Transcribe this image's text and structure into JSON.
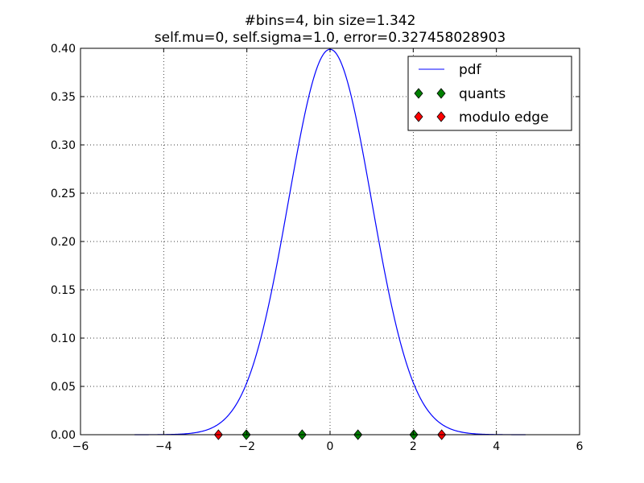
{
  "chart_data": {
    "type": "line",
    "title_lines": [
      "#bins=4, bin size=1.342",
      "self.mu=0, self.sigma=1.0, error=0.327458028903"
    ],
    "xlabel": "",
    "ylabel": "",
    "xlim": [
      -6,
      6
    ],
    "ylim": [
      0,
      0.4
    ],
    "x_ticks": [
      -6,
      -4,
      -2,
      0,
      2,
      4,
      6
    ],
    "x_tick_labels": [
      "−6",
      "−4",
      "−2",
      "0",
      "2",
      "4",
      "6"
    ],
    "y_ticks": [
      0,
      0.05,
      0.1,
      0.15,
      0.2,
      0.25,
      0.3,
      0.35,
      0.4
    ],
    "y_tick_labels": [
      "0.00",
      "0.05",
      "0.10",
      "0.15",
      "0.20",
      "0.25",
      "0.30",
      "0.35",
      "0.40"
    ],
    "grid": true,
    "legend_position": "top-right",
    "series": [
      {
        "name": "pdf",
        "kind": "line",
        "color": "#0000ff",
        "distribution": "normal",
        "mu": 0,
        "sigma": 1.0,
        "x_range": [
          -4.7,
          4.7
        ]
      },
      {
        "name": "quants",
        "kind": "marker",
        "marker": "diamond",
        "color": "#008000",
        "x": [
          -2.013,
          -0.671,
          0.671,
          2.013
        ],
        "y": [
          0,
          0,
          0,
          0
        ]
      },
      {
        "name": "modulo edge",
        "kind": "marker",
        "marker": "diamond",
        "color": "#ff0000",
        "x": [
          -2.684,
          2.684
        ],
        "y": [
          0,
          0
        ]
      }
    ]
  }
}
